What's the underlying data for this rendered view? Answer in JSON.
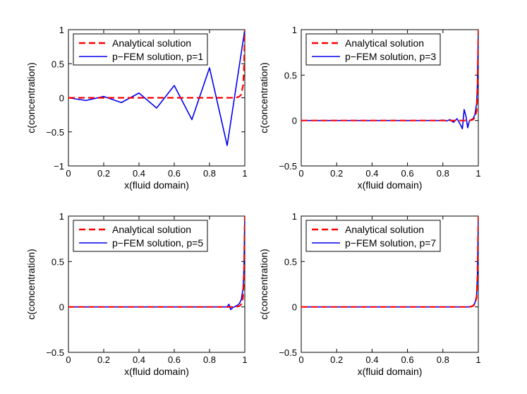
{
  "chart_data": [
    {
      "type": "line",
      "xlabel": "x(fluid domain)",
      "ylabel": "c(concentration)",
      "xlim": [
        0,
        1
      ],
      "ylim": [
        -1,
        1
      ],
      "xticks": [
        0,
        0.2,
        0.4,
        0.6,
        0.8,
        1
      ],
      "yticks": [
        -1,
        -0.5,
        0,
        0.5,
        1
      ],
      "xtick_labels": [
        "0",
        "0.2",
        "0.4",
        "0.6",
        "0.8",
        "1"
      ],
      "ytick_labels": [
        "−1",
        "−0.5",
        "0",
        "0.5",
        "1"
      ],
      "legend_position": "top-left",
      "series": [
        {
          "name": "Analytical solution",
          "color": "#ff0000",
          "style": "dashed",
          "x": [
            0,
            0.9,
            0.95,
            0.97,
            0.98,
            0.99,
            0.995,
            1.0
          ],
          "y": [
            0,
            0,
            0.0,
            0.02,
            0.05,
            0.18,
            0.4,
            1.0
          ]
        },
        {
          "name": "p−FEM solution, p=1",
          "color": "#0000ee",
          "style": "solid",
          "x": [
            0,
            0.1,
            0.2,
            0.3,
            0.4,
            0.5,
            0.6,
            0.7,
            0.8,
            0.9,
            1.0
          ],
          "y": [
            0,
            -0.04,
            0.02,
            -0.07,
            0.07,
            -0.15,
            0.18,
            -0.32,
            0.44,
            -0.7,
            1.0
          ]
        }
      ]
    },
    {
      "type": "line",
      "xlabel": "x(fluid domain)",
      "ylabel": "c(concentration)",
      "xlim": [
        0,
        1
      ],
      "ylim": [
        -0.5,
        1
      ],
      "xticks": [
        0,
        0.2,
        0.4,
        0.6,
        0.8,
        1
      ],
      "yticks": [
        -0.5,
        0,
        0.5,
        1
      ],
      "xtick_labels": [
        "0",
        "0.2",
        "0.4",
        "0.6",
        "0.8",
        "1"
      ],
      "ytick_labels": [
        "−0.5",
        "0",
        "0.5",
        "1"
      ],
      "legend_position": "top-left",
      "series": [
        {
          "name": "Analytical solution",
          "color": "#ff0000",
          "style": "dashed",
          "x": [
            0,
            0.95,
            0.97,
            0.98,
            0.99,
            0.995,
            1.0
          ],
          "y": [
            0,
            0,
            0.01,
            0.03,
            0.1,
            0.3,
            1.0
          ]
        },
        {
          "name": "p−FEM solution, p=3",
          "color": "#0000ee",
          "style": "solid",
          "x": [
            0,
            0.78,
            0.8,
            0.82,
            0.84,
            0.86,
            0.88,
            0.9,
            0.91,
            0.92,
            0.93,
            0.94,
            0.95,
            0.96,
            0.97,
            0.98,
            0.99,
            0.995,
            1.0
          ],
          "y": [
            0,
            0,
            0.005,
            -0.005,
            0.01,
            -0.02,
            0.02,
            -0.05,
            -0.09,
            0.12,
            0.05,
            -0.08,
            0.0,
            0.01,
            0.02,
            0.06,
            0.18,
            0.4,
            1.0
          ]
        }
      ]
    },
    {
      "type": "line",
      "xlabel": "x(fluid domain)",
      "ylabel": "c(concentration)",
      "xlim": [
        0,
        1
      ],
      "ylim": [
        -0.5,
        1
      ],
      "xticks": [
        0,
        0.2,
        0.4,
        0.6,
        0.8,
        1
      ],
      "yticks": [
        -0.5,
        0,
        0.5,
        1
      ],
      "xtick_labels": [
        "0",
        "0.2",
        "0.4",
        "0.6",
        "0.8",
        "1"
      ],
      "ytick_labels": [
        "−0.5",
        "0",
        "0.5",
        "1"
      ],
      "legend_position": "top-left",
      "series": [
        {
          "name": "Analytical solution",
          "color": "#ff0000",
          "style": "dashed",
          "x": [
            0,
            0.95,
            0.97,
            0.98,
            0.99,
            0.995,
            1.0
          ],
          "y": [
            0,
            0,
            0.01,
            0.03,
            0.1,
            0.3,
            1.0
          ]
        },
        {
          "name": "p−FEM solution, p=5",
          "color": "#0000ee",
          "style": "solid",
          "x": [
            0,
            0.9,
            0.91,
            0.92,
            0.93,
            0.94,
            0.95,
            0.96,
            0.97,
            0.98,
            0.99,
            0.995,
            1.0
          ],
          "y": [
            0,
            0,
            0.03,
            -0.03,
            -0.01,
            0.0,
            0.01,
            0.02,
            0.04,
            0.08,
            0.2,
            0.42,
            1.0
          ]
        }
      ]
    },
    {
      "type": "line",
      "xlabel": "x(fluid domain)",
      "ylabel": "c(concentration)",
      "xlim": [
        0,
        1
      ],
      "ylim": [
        -0.5,
        1
      ],
      "xticks": [
        0,
        0.2,
        0.4,
        0.6,
        0.8,
        1
      ],
      "yticks": [
        -0.5,
        0,
        0.5,
        1
      ],
      "xtick_labels": [
        "0",
        "0.2",
        "0.4",
        "0.6",
        "0.8",
        "1"
      ],
      "ytick_labels": [
        "−0.5",
        "0",
        "0.5",
        "1"
      ],
      "legend_position": "top-left",
      "series": [
        {
          "name": "Analytical solution",
          "color": "#ff0000",
          "style": "dashed",
          "x": [
            0,
            0.95,
            0.97,
            0.98,
            0.99,
            0.995,
            1.0
          ],
          "y": [
            0,
            0,
            0.01,
            0.03,
            0.1,
            0.3,
            1.0
          ]
        },
        {
          "name": "p−FEM solution, p=7",
          "color": "#0000ee",
          "style": "solid",
          "x": [
            0,
            0.94,
            0.96,
            0.97,
            0.98,
            0.99,
            0.995,
            1.0
          ],
          "y": [
            0,
            0,
            0.005,
            0.015,
            0.04,
            0.12,
            0.35,
            1.0
          ]
        }
      ]
    }
  ]
}
